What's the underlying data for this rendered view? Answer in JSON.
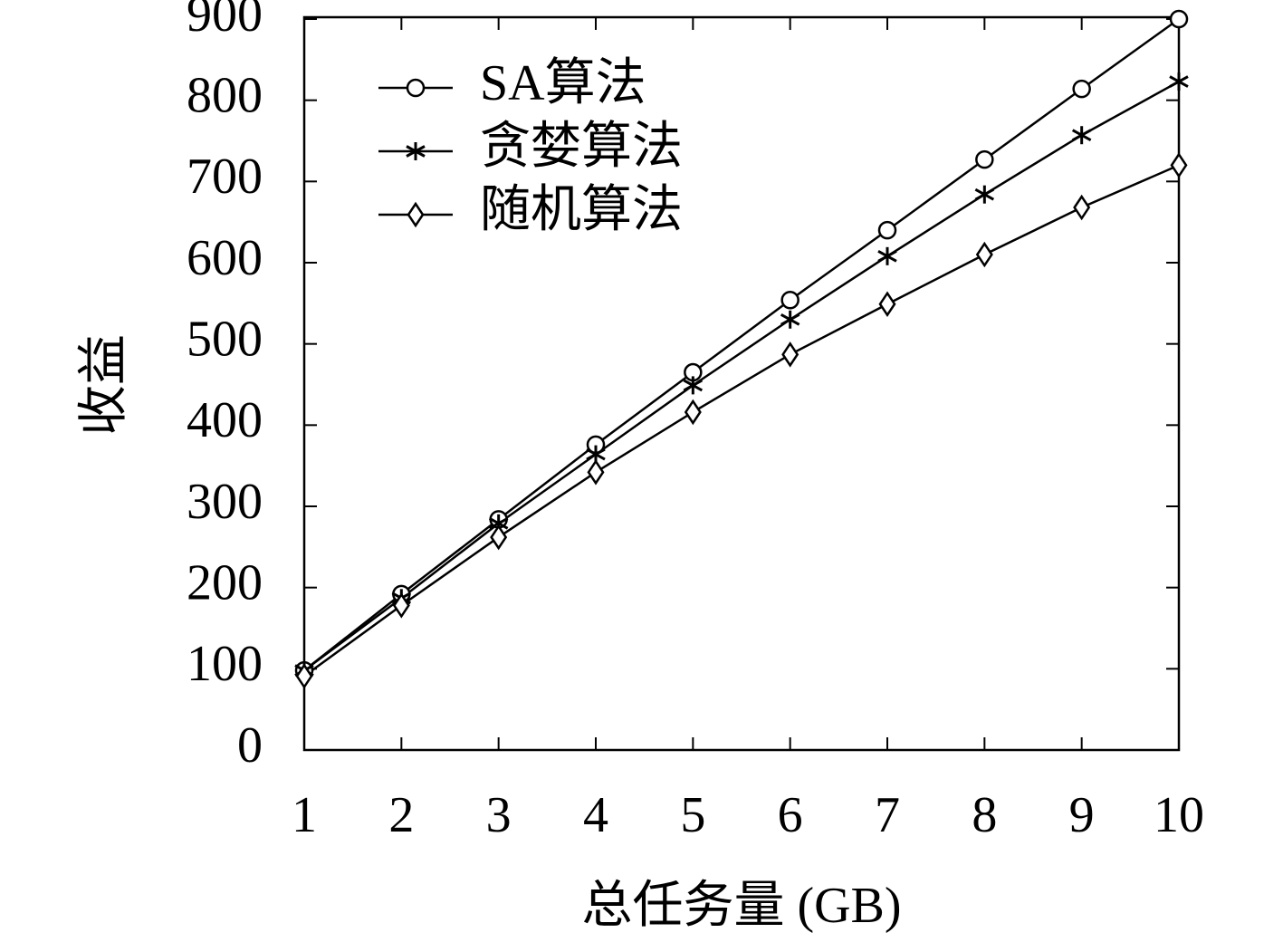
{
  "chart_data": {
    "type": "line",
    "x_label": "总任务量 (GB)",
    "y_label": "收益",
    "x": [
      1,
      2,
      3,
      4,
      5,
      6,
      7,
      8,
      9,
      10
    ],
    "series": [
      {
        "name": "SA算法",
        "color": "#000000",
        "marker": "circle",
        "values": [
          98,
          192,
          284,
          376,
          465,
          554,
          640,
          727,
          814,
          900
        ]
      },
      {
        "name": "贪婪算法",
        "color": "#000000",
        "marker": "asterisk",
        "values": [
          98,
          187,
          279,
          364,
          449,
          530,
          608,
          684,
          757,
          823
        ]
      },
      {
        "name": "随机算法",
        "color": "#000000",
        "marker": "diamond",
        "values": [
          91,
          178,
          262,
          342,
          416,
          487,
          549,
          610,
          668,
          720
        ]
      }
    ],
    "xlim": [
      1,
      10
    ],
    "ylim": [
      0,
      900
    ],
    "xticks": [
      1,
      2,
      3,
      4,
      5,
      6,
      7,
      8,
      9,
      10
    ],
    "yticks": [
      0,
      100,
      200,
      300,
      400,
      500,
      600,
      700,
      800,
      900
    ],
    "grid": false,
    "legend": "upper left"
  }
}
